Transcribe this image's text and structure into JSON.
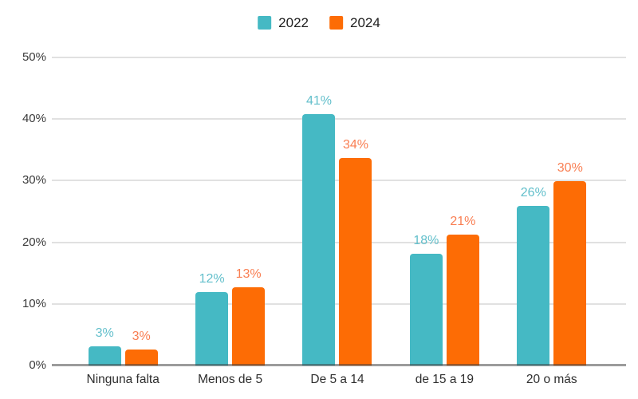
{
  "chart_data": {
    "type": "bar",
    "title": "",
    "xlabel": "",
    "ylabel": "",
    "categories": [
      "Ninguna falta",
      "Menos de 5",
      "De 5 a 14",
      "de 15 a 19",
      "20 o más"
    ],
    "series": [
      {
        "name": "2022",
        "color": "#45B9C4",
        "label_color": "#62BFCB",
        "values": [
          3,
          12,
          41,
          18,
          26
        ],
        "labels": [
          "3%",
          "12%",
          "41%",
          "18%",
          "26%"
        ],
        "heights_pct": [
          3.1,
          11.9,
          40.8,
          18.2,
          25.9
        ]
      },
      {
        "name": "2024",
        "color": "#FD6C05",
        "label_color": "#F97E52",
        "values": [
          3,
          13,
          34,
          21,
          30
        ],
        "labels": [
          "3%",
          "13%",
          "34%",
          "21%",
          "30%"
        ],
        "heights_pct": [
          2.6,
          12.7,
          33.7,
          21.2,
          29.9
        ]
      }
    ],
    "ylim": [
      0,
      50
    ],
    "ytick_values": [
      0,
      10,
      20,
      30,
      40,
      50
    ],
    "ytick_labels": [
      "0%",
      "10%",
      "20%",
      "30%",
      "40%",
      "50%"
    ],
    "grid": true,
    "legend_position": "top-center"
  },
  "colors": {
    "series_2022": "#45B9C4",
    "series_2024": "#FD6C05",
    "gridline": "#E1E1E1",
    "axis_line": "#8F8F8F",
    "axis_text": "#3A3A3A",
    "background": "#FFFFFF"
  }
}
